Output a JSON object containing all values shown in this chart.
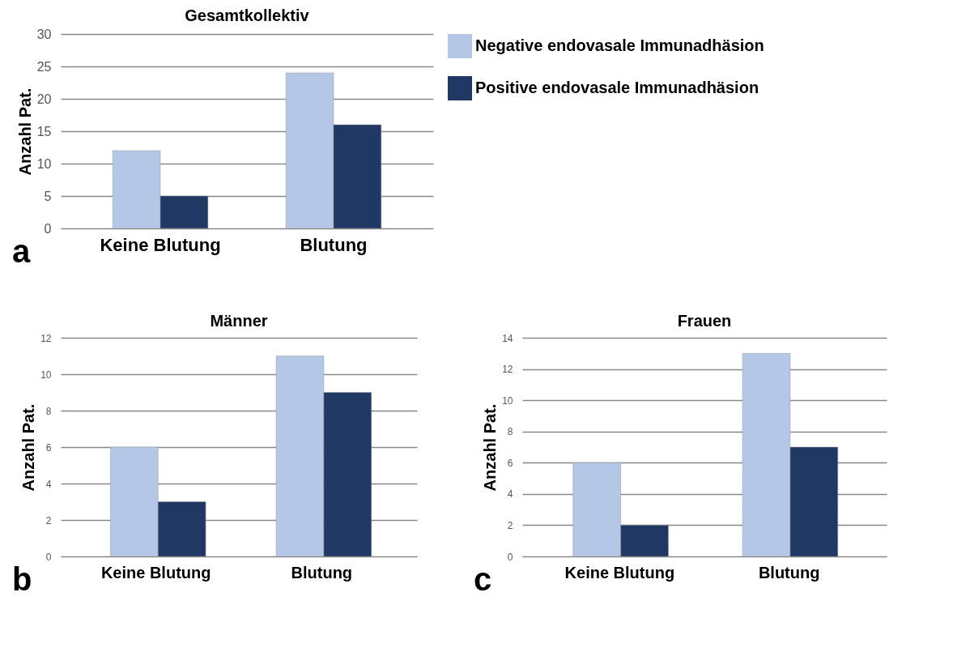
{
  "chart_data": [
    {
      "type": "bar",
      "title": "Gesamtkollektiv",
      "ylabel": "Anzahl Pat.",
      "categories": [
        "Keine Blutung",
        "Blutung"
      ],
      "series": [
        {
          "name": "Negative endovasale Immunadhäsion",
          "color": "#b4c7e7",
          "values": [
            12,
            24
          ]
        },
        {
          "name": "Positive endovasale Immunadhäsion",
          "color": "#203864",
          "values": [
            5,
            16
          ]
        }
      ],
      "ylim": [
        0,
        30
      ],
      "yticks": [
        0,
        5,
        10,
        15,
        20,
        25,
        30
      ],
      "grid": "y",
      "legend": "right",
      "annotations": [
        "a"
      ]
    },
    {
      "type": "bar",
      "title": "Männer",
      "ylabel": "Anzahl Pat.",
      "categories": [
        "Keine Blutung",
        "Blutung"
      ],
      "series": [
        {
          "color": "#b4c7e7",
          "values": [
            6,
            11
          ]
        },
        {
          "color": "#203864",
          "values": [
            3,
            9
          ]
        }
      ],
      "ylim": [
        0,
        12
      ],
      "yticks": [
        0,
        2,
        4,
        6,
        8,
        10,
        12
      ],
      "grid": "y",
      "annotations": [
        "b"
      ]
    },
    {
      "type": "bar",
      "title": "Frauen",
      "ylabel": "Anzahl Pat.",
      "categories": [
        "Keine Blutung",
        "Blutung"
      ],
      "series": [
        {
          "color": "#b4c7e7",
          "values": [
            6,
            13
          ]
        },
        {
          "color": "#203864",
          "values": [
            2,
            7
          ]
        }
      ],
      "ylim": [
        0,
        14
      ],
      "yticks": [
        0,
        2,
        4,
        6,
        8,
        10,
        12,
        14
      ],
      "grid": "y",
      "annotations": [
        "c"
      ]
    }
  ]
}
